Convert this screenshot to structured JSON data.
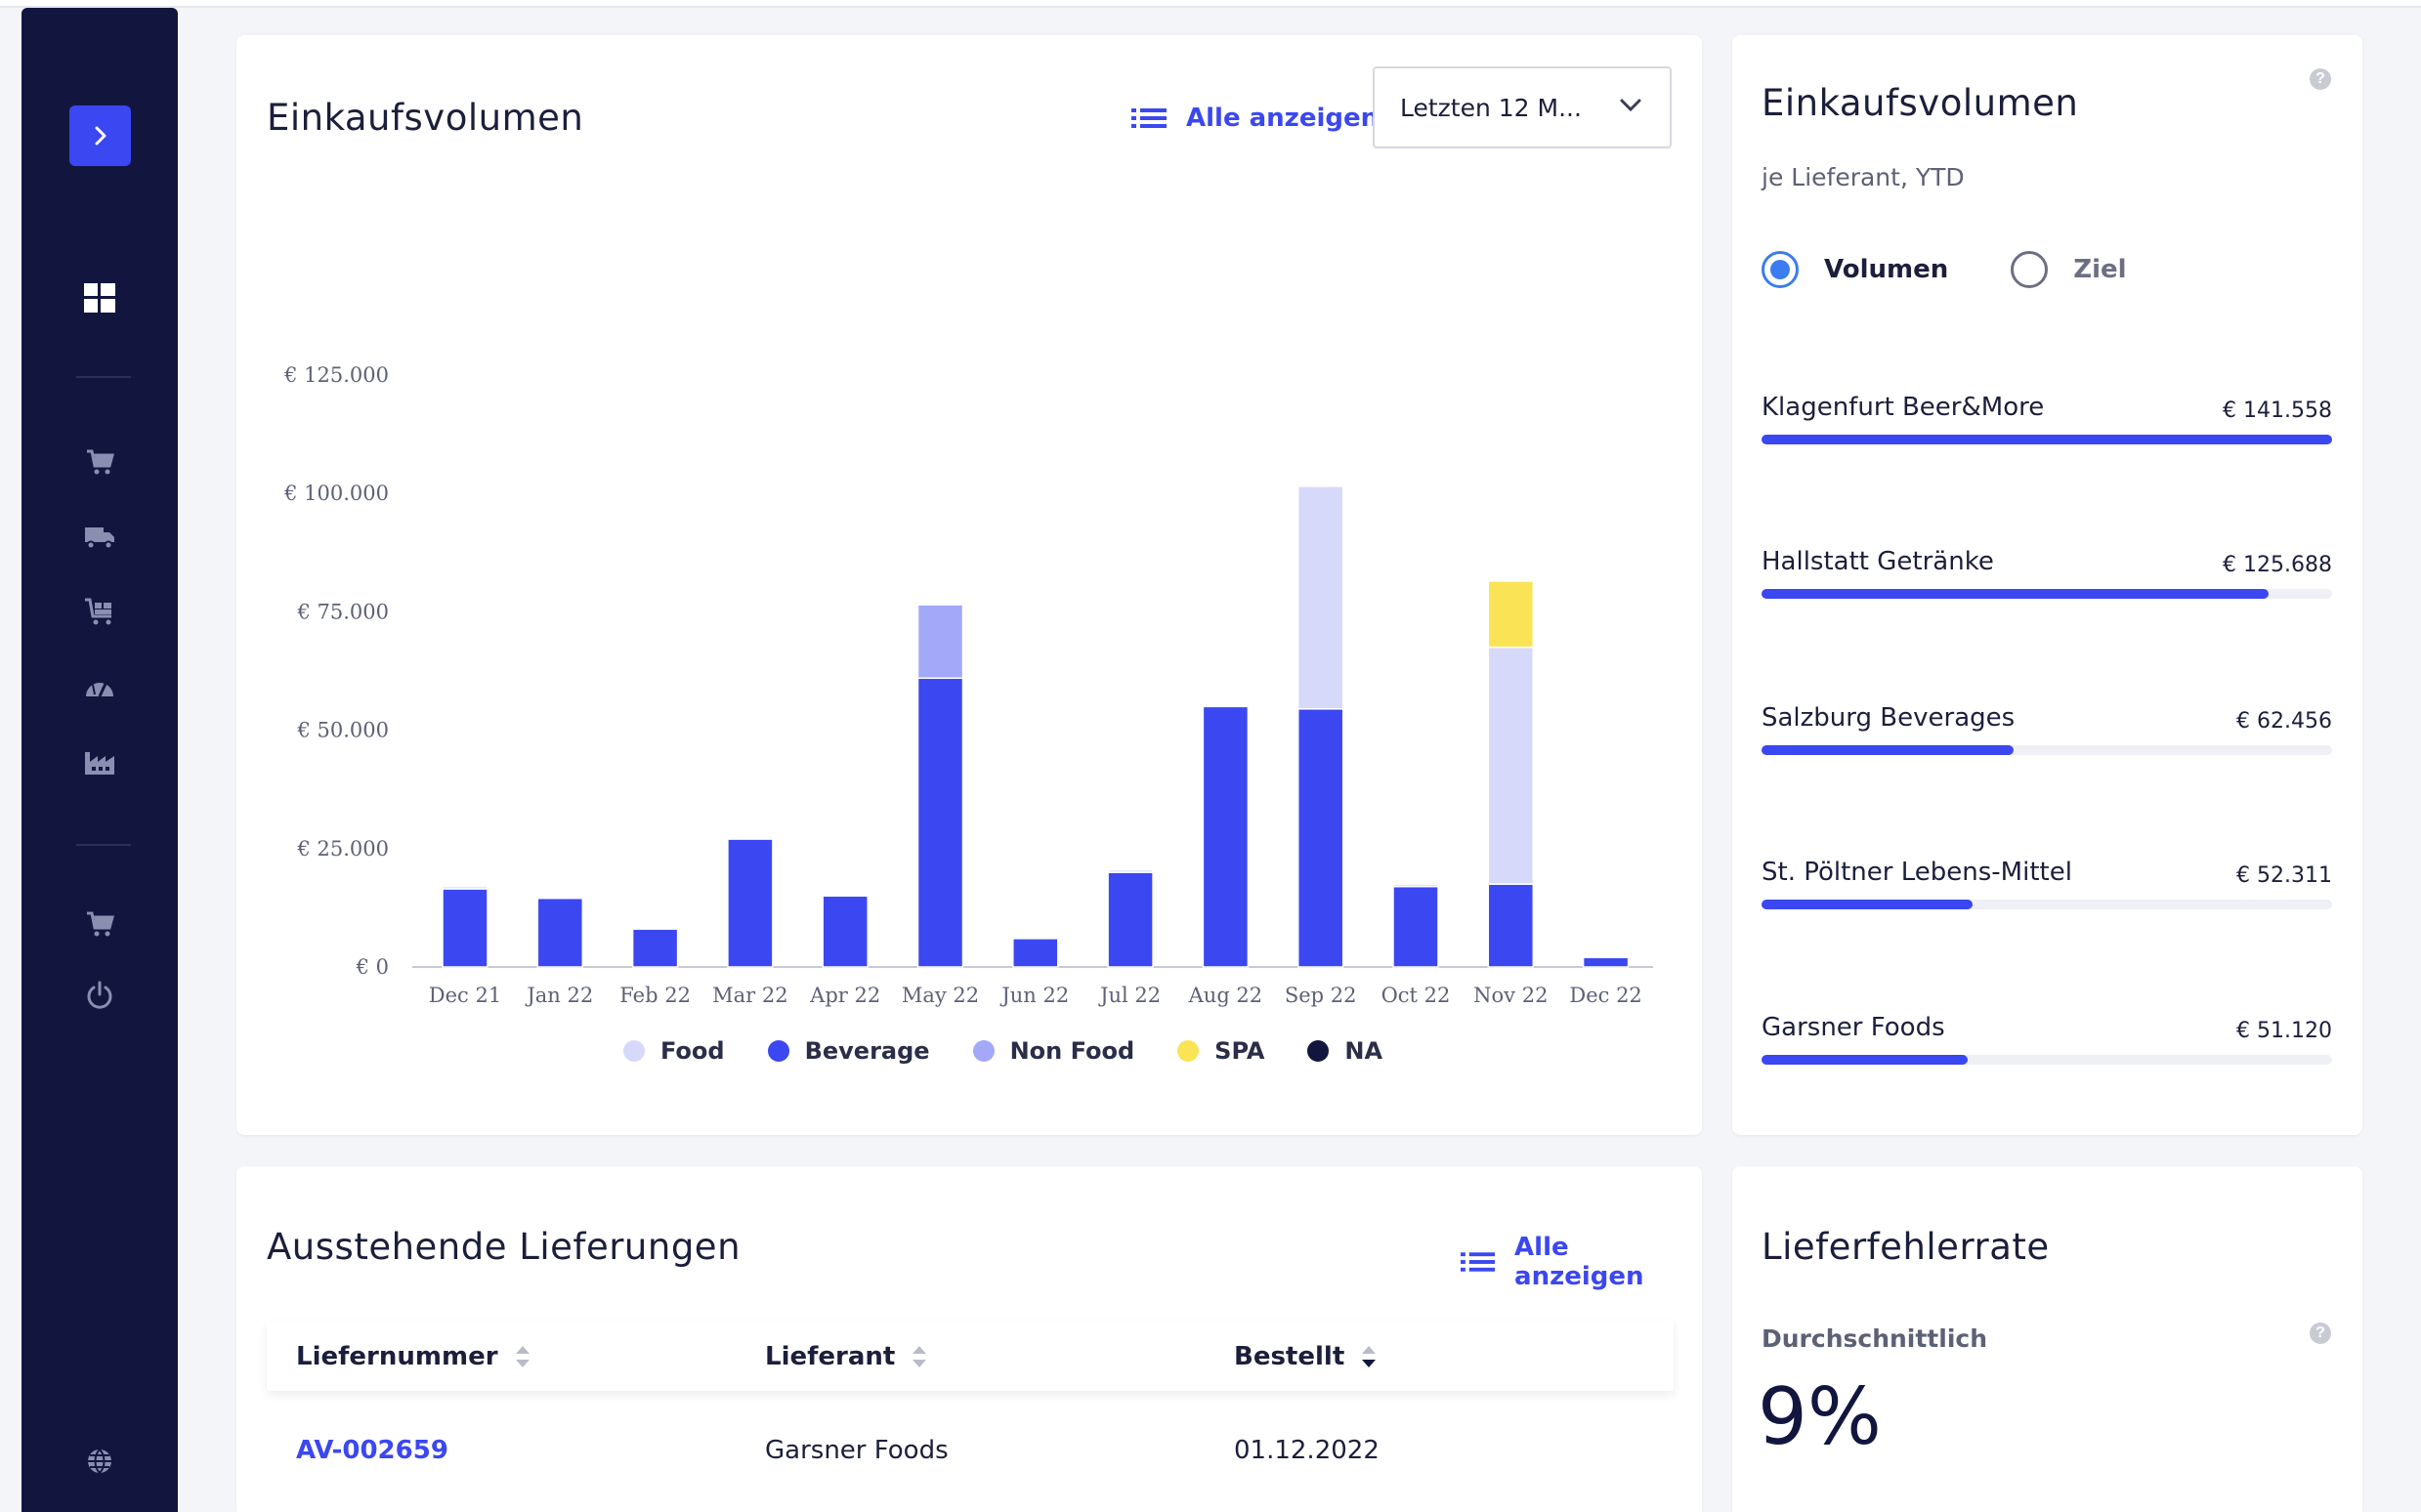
{
  "sidebar": {
    "icons": [
      "chevron-right-icon",
      "dashboard-icon",
      "cart-icon",
      "truck-icon",
      "cart-delivery-icon",
      "gauge-icon",
      "factory-icon",
      "cart-icon",
      "power-icon",
      "globe-icon"
    ],
    "accent": "#3b47f0",
    "background": "#12163f"
  },
  "volume_card": {
    "title": "Einkaufsvolumen",
    "show_all": "Alle anzeigen",
    "period_select": "Letzten 12 M..."
  },
  "chart_data": {
    "type": "bar",
    "stacked": true,
    "categories": [
      "Dec 21",
      "Jan 22",
      "Feb 22",
      "Mar 22",
      "Apr 22",
      "May 22",
      "Jun 22",
      "Jul 22",
      "Aug 22",
      "Sep 22",
      "Oct 22",
      "Nov 22",
      "Dec 22"
    ],
    "series": [
      {
        "name": "Beverage",
        "color": "#3b47f0",
        "values": [
          16500,
          14500,
          8000,
          27000,
          15000,
          61000,
          6000,
          20000,
          55000,
          54500,
          17000,
          17500,
          2000
        ]
      },
      {
        "name": "Food",
        "color": "#d7d9fb",
        "values": [
          500,
          0,
          0,
          0,
          0,
          0,
          0,
          500,
          0,
          47000,
          500,
          50000,
          0
        ]
      },
      {
        "name": "Non Food",
        "color": "#a3a9f8",
        "values": [
          0,
          0,
          0,
          0,
          0,
          15500,
          0,
          0,
          0,
          0,
          0,
          0,
          0
        ]
      },
      {
        "name": "SPA",
        "color": "#fbe356",
        "values": [
          0,
          0,
          0,
          0,
          0,
          0,
          0,
          0,
          0,
          0,
          0,
          14000,
          0
        ]
      },
      {
        "name": "NA",
        "color": "#12163f",
        "values": [
          0,
          0,
          0,
          0,
          0,
          0,
          0,
          0,
          0,
          0,
          0,
          0,
          0
        ]
      }
    ],
    "legend": [
      "Food",
      "Beverage",
      "Non Food",
      "SPA",
      "NA"
    ],
    "legend_colors": [
      "#d7d9fb",
      "#3b47f0",
      "#a3a9f8",
      "#fbe356",
      "#12163f"
    ],
    "yticks": [
      "€ 0",
      "€ 25.000",
      "€ 50.000",
      "€ 75.000",
      "€ 100.000",
      "€ 125.000"
    ],
    "ylim": [
      0,
      125000
    ],
    "grid": false,
    "legend_position": "bottom"
  },
  "supplier_card": {
    "title": "Einkaufsvolumen",
    "subtitle": "je Lieferant, YTD",
    "radio_volume": "Volumen",
    "radio_target": "Ziel",
    "suppliers": [
      {
        "name": "Klagenfurt Beer&More",
        "amount": "€ 141.558",
        "fraction": 1.0
      },
      {
        "name": "Hallstatt Getränke",
        "amount": "€ 125.688",
        "fraction": 0.888
      },
      {
        "name": "Salzburg Beverages",
        "amount": "€ 62.456",
        "fraction": 0.441
      },
      {
        "name": "St. Pöltner Lebens-Mittel",
        "amount": "€ 52.311",
        "fraction": 0.37
      },
      {
        "name": "Garsner Foods",
        "amount": "€ 51.120",
        "fraction": 0.361
      }
    ]
  },
  "deliveries_card": {
    "title": "Ausstehende Lieferungen",
    "show_all": "Alle anzeigen",
    "columns": [
      "Liefernummer",
      "Lieferant",
      "Bestellt"
    ],
    "rows": [
      {
        "number": "AV-002659",
        "supplier": "Garsner Foods",
        "ordered": "01.12.2022"
      }
    ]
  },
  "error_card": {
    "title": "Lieferfehlerrate",
    "label": "Durchschnittlich",
    "value": "9%"
  }
}
